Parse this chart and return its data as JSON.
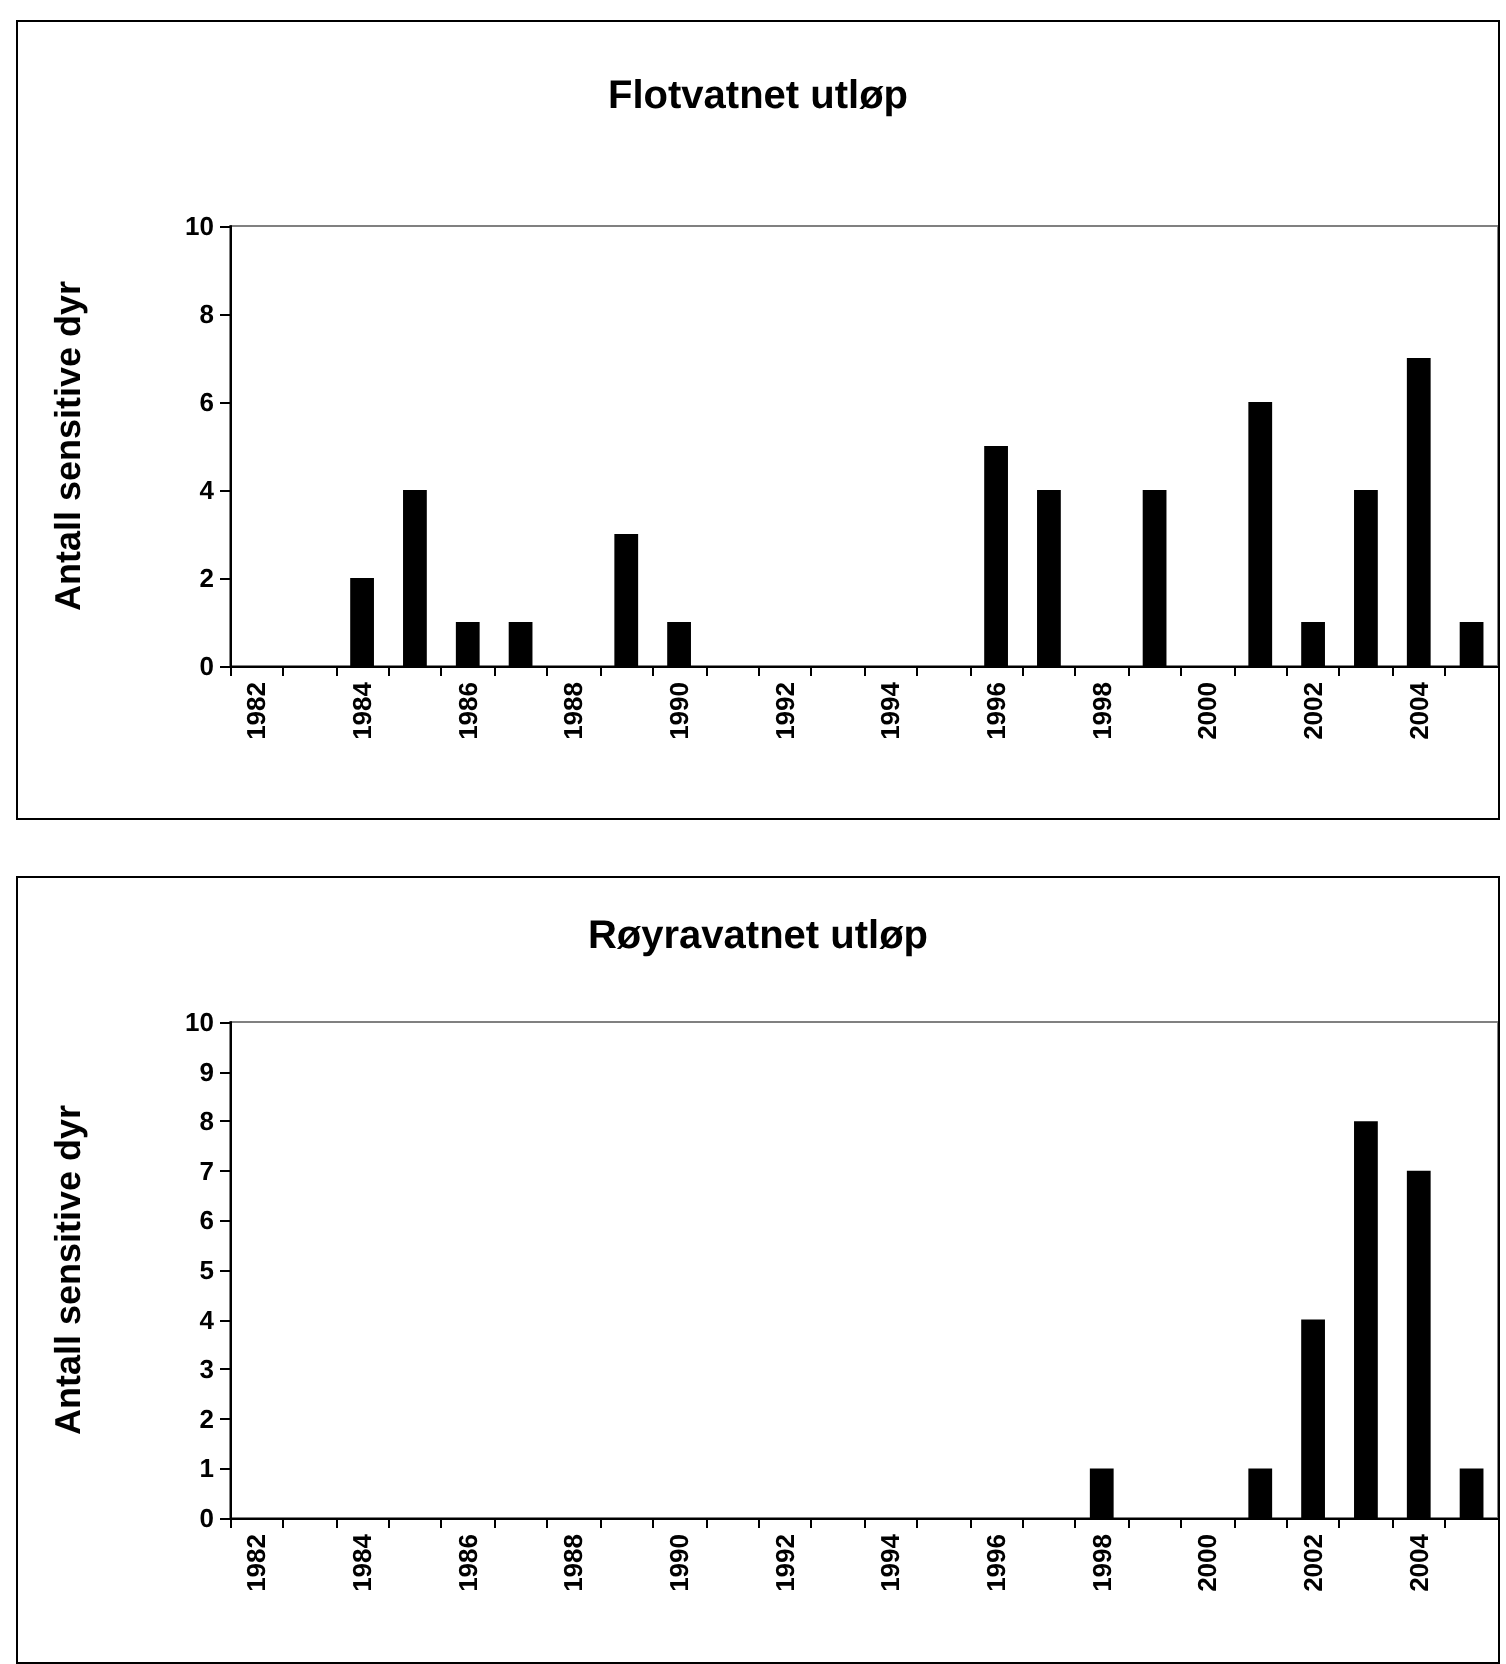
{
  "chart_data": [
    {
      "type": "bar",
      "title": "Flotvatnet utløp",
      "ylabel": "Antall sensitive dyr",
      "categories": [
        "1982",
        null,
        "1984",
        null,
        "1986",
        null,
        "1988",
        null,
        "1990",
        null,
        "1992",
        null,
        "1994",
        null,
        "1996",
        null,
        "1998",
        null,
        "2000",
        null,
        "2002",
        null,
        "2004",
        null
      ],
      "values": [
        0,
        0,
        2,
        4,
        1,
        1,
        0,
        3,
        1,
        0,
        0,
        0,
        0,
        0,
        5,
        4,
        0,
        4,
        0,
        6,
        1,
        4,
        7,
        1
      ],
      "color": "#000000",
      "ylim": [
        0,
        10
      ],
      "yticks": [
        0,
        2,
        4,
        6,
        8,
        10
      ]
    },
    {
      "type": "bar",
      "title": "Røyravatnet utløp",
      "ylabel": "Antall sensitive dyr",
      "categories": [
        "1982",
        null,
        "1984",
        null,
        "1986",
        null,
        "1988",
        null,
        "1990",
        null,
        "1992",
        null,
        "1994",
        null,
        "1996",
        null,
        "1998",
        null,
        "2000",
        null,
        "2002",
        null,
        "2004",
        null
      ],
      "values": [
        0,
        0,
        0,
        0,
        0,
        0,
        0,
        0,
        0,
        0,
        0,
        0,
        0,
        0,
        0,
        0,
        1,
        0,
        0,
        1,
        4,
        8,
        7,
        1
      ],
      "color": "#000000",
      "ylim": [
        0,
        10
      ],
      "yticks": [
        0,
        1,
        2,
        3,
        4,
        5,
        6,
        7,
        8,
        9,
        10
      ]
    }
  ]
}
